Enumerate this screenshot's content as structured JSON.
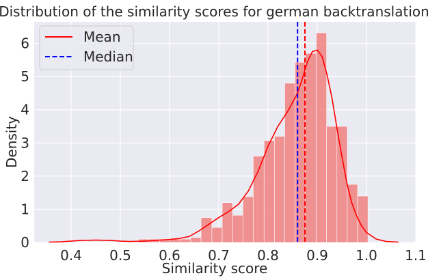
{
  "chart_data": {
    "type": "histogram",
    "title": "Distribution of the similarity scores for german backtranslation",
    "xlabel": "Similarity score",
    "ylabel": "Density",
    "xlim": [
      0.325,
      1.1
    ],
    "ylim": [
      0,
      6.65
    ],
    "xticks": [
      0.4,
      0.5,
      0.6,
      0.7,
      0.8,
      0.9,
      1.0,
      1.1
    ],
    "xtick_labels": [
      "0.4",
      "0.5",
      "0.6",
      "0.7",
      "0.8",
      "0.9",
      "1.0",
      "1.1"
    ],
    "yticks": [
      0,
      1,
      2,
      3,
      4,
      5,
      6
    ],
    "ytick_labels": [
      "0",
      "1",
      "2",
      "3",
      "4",
      "5",
      "6"
    ],
    "grid": true,
    "legend_position": "top-left",
    "colors": {
      "background": "#eaeaf2",
      "grid": "#ffffff",
      "bars": "#f08080",
      "kde": "#ff0000",
      "mean": "#ff0000",
      "median": "#0000ff"
    },
    "bins": [
      {
        "x0": 0.537,
        "x1": 0.558,
        "density": 0.1
      },
      {
        "x0": 0.558,
        "x1": 0.58,
        "density": 0.1
      },
      {
        "x0": 0.58,
        "x1": 0.601,
        "density": 0.1
      },
      {
        "x0": 0.601,
        "x1": 0.622,
        "density": 0.1
      },
      {
        "x0": 0.622,
        "x1": 0.643,
        "density": 0.1
      },
      {
        "x0": 0.643,
        "x1": 0.664,
        "density": 0.15
      },
      {
        "x0": 0.664,
        "x1": 0.686,
        "density": 0.75
      },
      {
        "x0": 0.686,
        "x1": 0.707,
        "density": 0.45
      },
      {
        "x0": 0.707,
        "x1": 0.728,
        "density": 1.2
      },
      {
        "x0": 0.728,
        "x1": 0.749,
        "density": 0.82
      },
      {
        "x0": 0.749,
        "x1": 0.77,
        "density": 1.38
      },
      {
        "x0": 0.77,
        "x1": 0.792,
        "density": 2.6
      },
      {
        "x0": 0.792,
        "x1": 0.813,
        "density": 3.07
      },
      {
        "x0": 0.813,
        "x1": 0.834,
        "density": 3.2
      },
      {
        "x0": 0.834,
        "x1": 0.855,
        "density": 4.8
      },
      {
        "x0": 0.855,
        "x1": 0.876,
        "density": 5.43
      },
      {
        "x0": 0.876,
        "x1": 0.898,
        "density": 5.7
      },
      {
        "x0": 0.898,
        "x1": 0.919,
        "density": 6.32
      },
      {
        "x0": 0.919,
        "x1": 0.94,
        "density": 3.5
      },
      {
        "x0": 0.94,
        "x1": 0.961,
        "density": 3.5
      },
      {
        "x0": 0.961,
        "x1": 0.982,
        "density": 1.75
      },
      {
        "x0": 0.982,
        "x1": 1.003,
        "density": 1.4
      }
    ],
    "kde": {
      "x": [
        0.355,
        0.38,
        0.4,
        0.42,
        0.45,
        0.48,
        0.5,
        0.52,
        0.55,
        0.58,
        0.6,
        0.62,
        0.64,
        0.66,
        0.68,
        0.7,
        0.72,
        0.74,
        0.76,
        0.78,
        0.8,
        0.82,
        0.84,
        0.86,
        0.87,
        0.88,
        0.89,
        0.9,
        0.91,
        0.92,
        0.93,
        0.94,
        0.95,
        0.96,
        0.97,
        0.98,
        0.99,
        1.0,
        1.02,
        1.04,
        1.065
      ],
      "y": [
        0.01,
        0.02,
        0.04,
        0.06,
        0.07,
        0.06,
        0.04,
        0.03,
        0.04,
        0.07,
        0.09,
        0.12,
        0.18,
        0.35,
        0.55,
        0.75,
        0.93,
        1.15,
        1.55,
        2.15,
        2.9,
        3.5,
        3.95,
        4.5,
        4.95,
        5.45,
        5.75,
        5.8,
        5.6,
        5.05,
        4.35,
        3.45,
        2.6,
        1.8,
        1.2,
        0.8,
        0.5,
        0.3,
        0.1,
        0.03,
        0.01
      ]
    },
    "mean": 0.875,
    "median": 0.86,
    "legend": [
      {
        "label": "Mean",
        "style": "solid",
        "color": "#ff0000"
      },
      {
        "label": "Median",
        "style": "dashed",
        "color": "#0000ff"
      }
    ]
  }
}
